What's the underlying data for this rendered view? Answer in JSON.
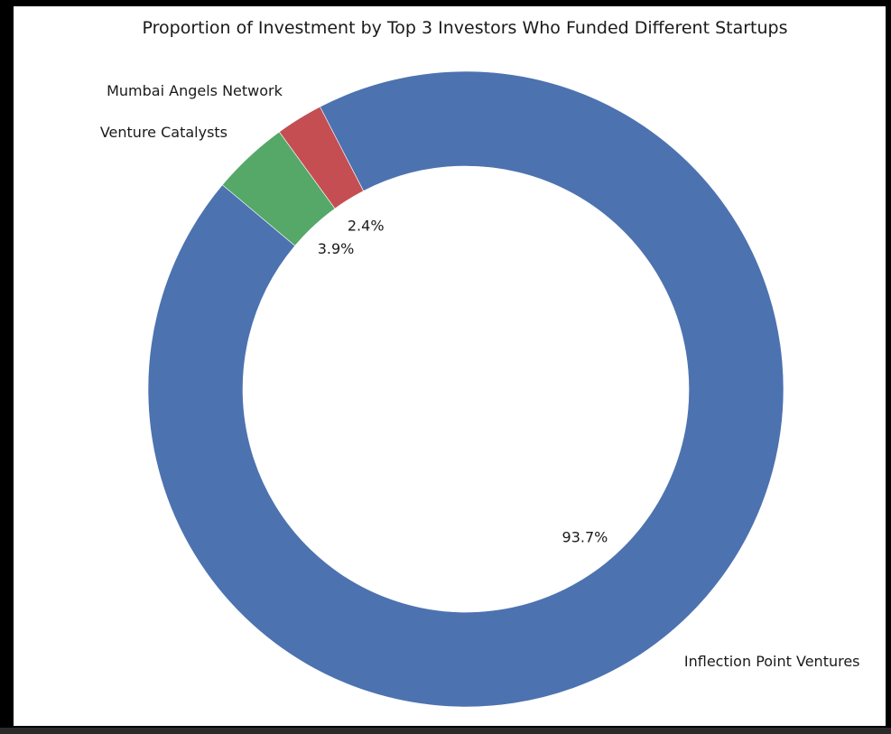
{
  "chart_data": {
    "type": "pie",
    "variant": "donut",
    "title": "Proportion of Investment by Top 3 Investors Who Funded Different Startups",
    "slices": [
      {
        "label": "Inflection Point Ventures",
        "value": 93.7,
        "pct_label": "93.7%",
        "color": "#4c72b0"
      },
      {
        "label": "Mumbai Angels Network",
        "value": 2.4,
        "pct_label": "2.4%",
        "color": "#c44e52"
      },
      {
        "label": "Venture Catalysts",
        "value": 3.9,
        "pct_label": "3.9%",
        "color": "#55a868"
      }
    ],
    "start_angle_deg": 140,
    "direction": "counterclockwise",
    "legend": "none"
  }
}
